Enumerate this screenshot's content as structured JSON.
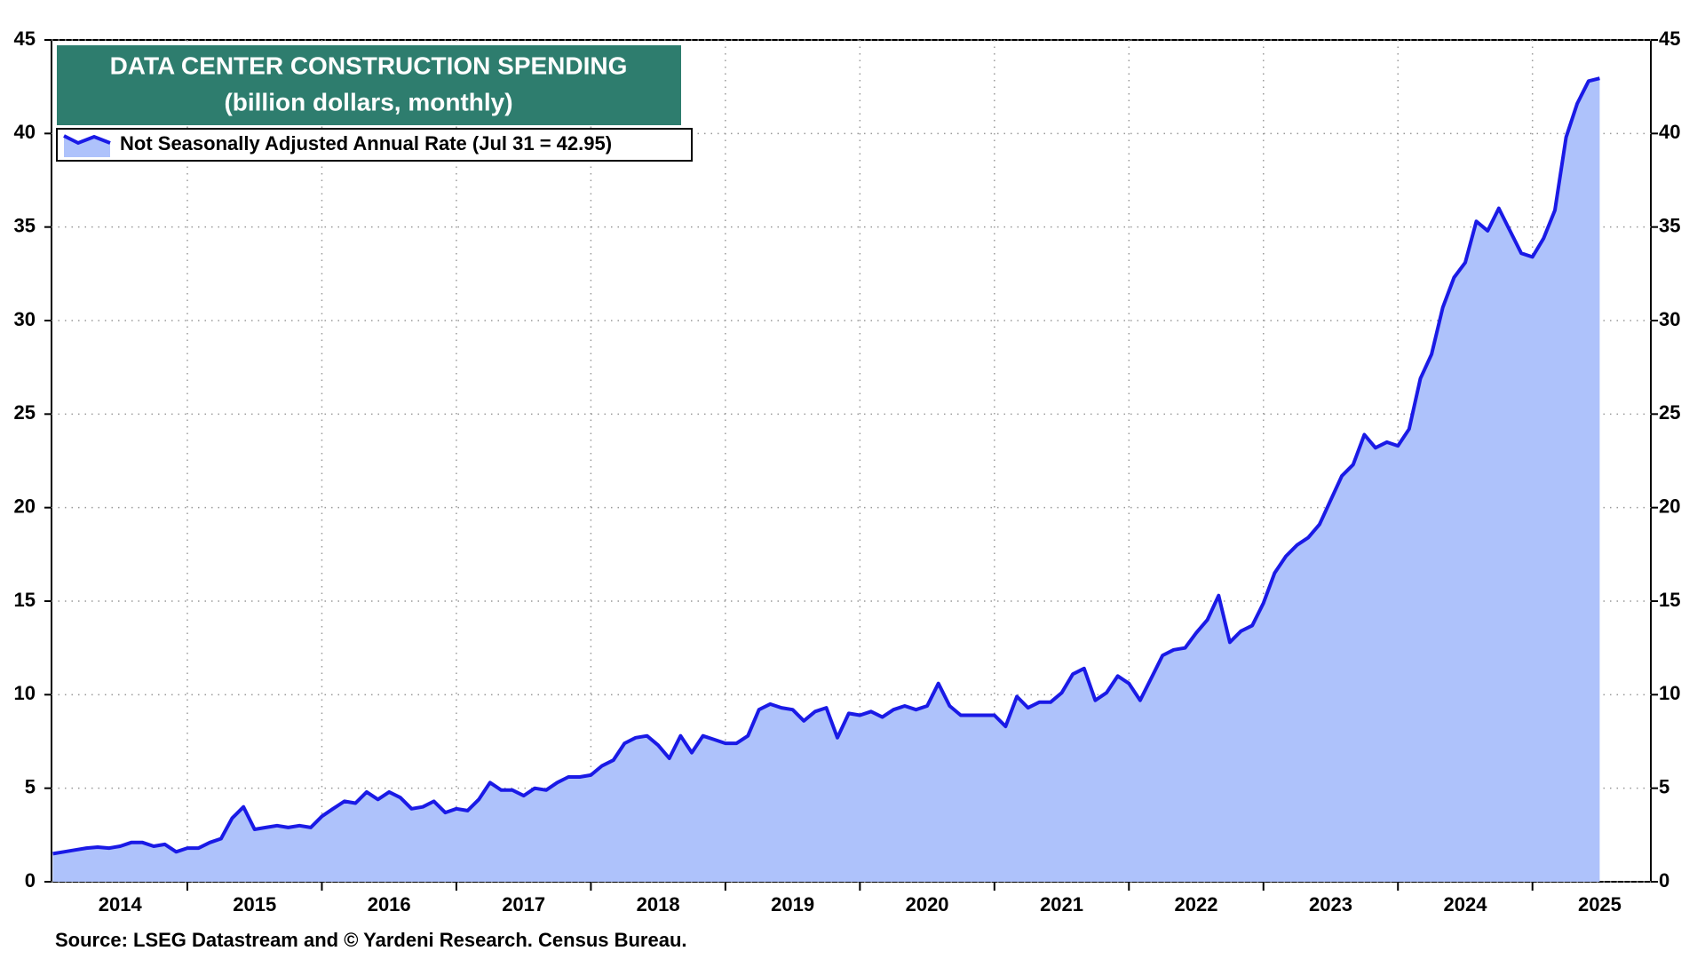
{
  "chart_data": {
    "type": "area",
    "title": "DATA CENTER CONSTRUCTION SPENDING",
    "subtitle": "(billion dollars, monthly)",
    "source": "Source: LSEG Datastream and © Yardeni Research. Census Bureau.",
    "legend": "upper left",
    "grid": true,
    "x": [
      2014,
      2014.083,
      2014.167,
      2014.25,
      2014.333,
      2014.417,
      2014.5,
      2014.583,
      2014.667,
      2014.75,
      2014.833,
      2014.917,
      2015,
      2015.083,
      2015.167,
      2015.25,
      2015.333,
      2015.417,
      2015.5,
      2015.583,
      2015.667,
      2015.75,
      2015.833,
      2015.917,
      2016,
      2016.083,
      2016.167,
      2016.25,
      2016.333,
      2016.417,
      2016.5,
      2016.583,
      2016.667,
      2016.75,
      2016.833,
      2016.917,
      2017,
      2017.083,
      2017.167,
      2017.25,
      2017.333,
      2017.417,
      2017.5,
      2017.583,
      2017.667,
      2017.75,
      2017.833,
      2017.917,
      2018,
      2018.083,
      2018.167,
      2018.25,
      2018.333,
      2018.417,
      2018.5,
      2018.583,
      2018.667,
      2018.75,
      2018.833,
      2018.917,
      2019,
      2019.083,
      2019.167,
      2019.25,
      2019.333,
      2019.417,
      2019.5,
      2019.583,
      2019.667,
      2019.75,
      2019.833,
      2019.917,
      2020,
      2020.083,
      2020.167,
      2020.25,
      2020.333,
      2020.417,
      2020.5,
      2020.583,
      2020.667,
      2020.75,
      2020.833,
      2020.917,
      2021,
      2021.083,
      2021.167,
      2021.25,
      2021.333,
      2021.417,
      2021.5,
      2021.583,
      2021.667,
      2021.75,
      2021.833,
      2021.917,
      2022,
      2022.083,
      2022.167,
      2022.25,
      2022.333,
      2022.417,
      2022.5,
      2022.583,
      2022.667,
      2022.75,
      2022.833,
      2022.917,
      2023,
      2023.083,
      2023.167,
      2023.25,
      2023.333,
      2023.417,
      2023.5,
      2023.583,
      2023.667,
      2023.75,
      2023.833,
      2023.917,
      2024,
      2024.083,
      2024.167,
      2024.25,
      2024.333,
      2024.417,
      2024.5,
      2024.583,
      2024.667,
      2024.75,
      2024.833,
      2024.917,
      2025,
      2025.083,
      2025.167,
      2025.25,
      2025.333,
      2025.417,
      2025.5
    ],
    "series": [
      {
        "name": "Not Seasonally Adjusted Annual Rate (Jul 31 = 42.95)",
        "color": "#1a1ae6",
        "fill_color": "#aec2fb",
        "values": [
          1.5,
          1.6,
          1.7,
          1.8,
          1.85,
          1.8,
          1.9,
          2.1,
          2.1,
          1.9,
          2.0,
          1.6,
          1.8,
          1.8,
          2.1,
          2.3,
          3.4,
          4.0,
          2.8,
          2.9,
          3.0,
          2.9,
          3.0,
          2.9,
          3.5,
          3.9,
          4.3,
          4.2,
          4.8,
          4.4,
          4.8,
          4.5,
          3.9,
          4.0,
          4.3,
          3.7,
          3.9,
          3.8,
          4.4,
          5.3,
          4.9,
          4.9,
          4.6,
          5.0,
          4.9,
          5.3,
          5.6,
          5.6,
          5.7,
          6.2,
          6.5,
          7.4,
          7.7,
          7.8,
          7.3,
          6.6,
          7.8,
          6.9,
          7.8,
          7.6,
          7.4,
          7.4,
          7.8,
          9.2,
          9.5,
          9.3,
          9.2,
          8.6,
          9.1,
          9.3,
          7.7,
          9.0,
          8.9,
          9.1,
          8.8,
          9.2,
          9.4,
          9.2,
          9.4,
          10.6,
          9.4,
          8.9,
          8.9,
          8.9,
          8.9,
          8.3,
          9.9,
          9.3,
          9.6,
          9.6,
          10.1,
          11.1,
          11.4,
          9.7,
          10.1,
          11.0,
          10.6,
          9.7,
          10.9,
          12.1,
          12.4,
          12.5,
          13.3,
          14.0,
          15.3,
          12.8,
          13.4,
          13.7,
          14.9,
          16.5,
          17.4,
          18.0,
          18.4,
          19.1,
          20.4,
          21.7,
          22.3,
          23.9,
          23.2,
          23.5,
          23.3,
          24.2,
          26.9,
          28.2,
          30.7,
          32.3,
          33.1,
          35.3,
          34.8,
          36.0,
          34.8,
          33.6,
          33.4,
          34.4,
          35.9,
          39.8,
          41.6,
          42.8,
          42.95
        ]
      }
    ],
    "xlim": [
      2013.99,
      2025.88
    ],
    "xticks": [
      {
        "value": 2014.5,
        "label": "2014"
      },
      {
        "value": 2015.5,
        "label": "2015"
      },
      {
        "value": 2016.5,
        "label": "2016"
      },
      {
        "value": 2017.5,
        "label": "2017"
      },
      {
        "value": 2018.5,
        "label": "2018"
      },
      {
        "value": 2019.5,
        "label": "2019"
      },
      {
        "value": 2020.5,
        "label": "2020"
      },
      {
        "value": 2021.5,
        "label": "2021"
      },
      {
        "value": 2022.5,
        "label": "2022"
      },
      {
        "value": 2023.5,
        "label": "2023"
      },
      {
        "value": 2024.5,
        "label": "2024"
      },
      {
        "value": 2025.5,
        "label": "2025"
      }
    ],
    "xgrid": [
      2015,
      2016,
      2017,
      2018,
      2019,
      2020,
      2021,
      2022,
      2023,
      2024,
      2025
    ],
    "ylim": [
      0,
      45
    ],
    "yticks": [
      0,
      5,
      10,
      15,
      20,
      25,
      30,
      35,
      40,
      45
    ]
  }
}
